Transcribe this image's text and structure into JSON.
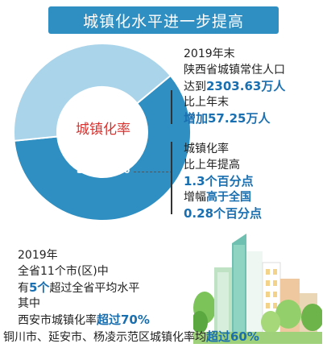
{
  "title": "城镇化水平进一步提高",
  "chart_data": {
    "type": "pie",
    "style": "donut",
    "center_label": "城镇化率",
    "values": [
      59.43,
      40.57
    ],
    "value_label": "59.43%",
    "colors": [
      "#2f8fc2",
      "#a9d4ea"
    ]
  },
  "block1": {
    "l1": "2019年末",
    "l2": "陕西省城镇常住人口",
    "l3_pre": "达到",
    "l3_val": "2303.63万人",
    "l4": "比上年末",
    "l5": "增加57.25万人"
  },
  "block2": {
    "l1": "城镇化率",
    "l2": "比上年提高",
    "l3": "1.3个百分点",
    "l4_pre": "增幅",
    "l4_val": "高于全国",
    "l5": "0.28个百分点"
  },
  "block3": {
    "l1": "2019年",
    "l2": "全省11个市(区)中",
    "l3_pre": "有",
    "l3_num": "5个",
    "l3_post": "超过全省平均水平",
    "l4": "其中",
    "l5_pre": "西安市城镇化率",
    "l5_val": "超过70%",
    "l6_pre": "铜川市、延安市、杨凌示范区城镇化率均",
    "l6_val": "超过60%"
  }
}
